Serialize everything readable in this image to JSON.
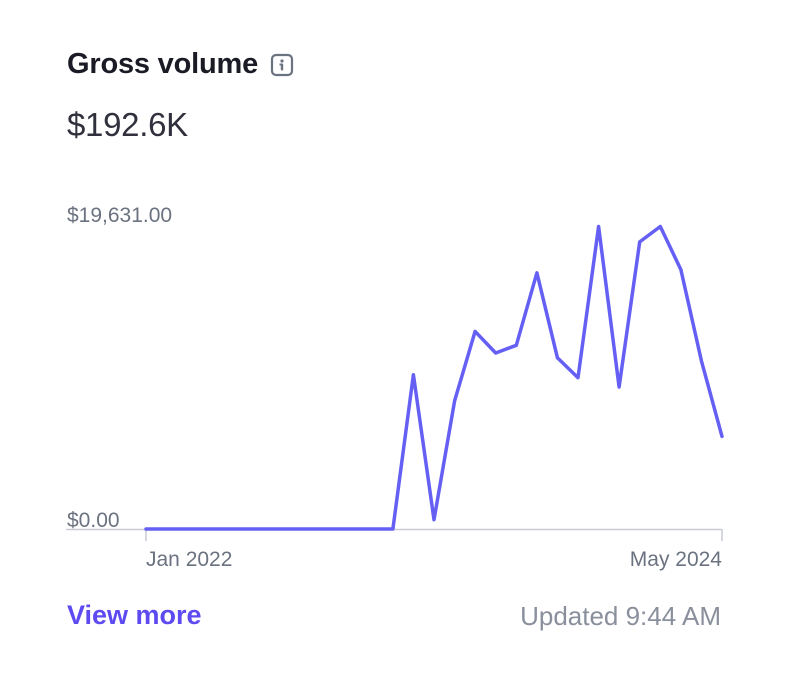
{
  "card": {
    "title": "Gross volume",
    "total": "$192.6K",
    "view_more": "View more",
    "updated": "Updated 9:44 AM"
  },
  "icons": {
    "info": "info-icon"
  },
  "colors": {
    "line": "#6560f3",
    "accent": "#5d4af1",
    "axis": "#c9cbd6",
    "muted": "#6b7280"
  },
  "chart_data": {
    "type": "line",
    "title": "Gross volume",
    "ylim": [
      0,
      19631
    ],
    "y_tick_labels": [
      "$19,631.00",
      "$0.00"
    ],
    "x_tick_labels": [
      "Jan 2022",
      "May 2024"
    ],
    "x": [
      "Jan 2022",
      "Feb 2022",
      "Mar 2022",
      "Apr 2022",
      "May 2022",
      "Jun 2022",
      "Jul 2022",
      "Aug 2022",
      "Sep 2022",
      "Oct 2022",
      "Nov 2022",
      "Dec 2022",
      "Jan 2023",
      "Feb 2023",
      "Mar 2023",
      "Apr 2023",
      "May 2023",
      "Jun 2023",
      "Jul 2023",
      "Aug 2023",
      "Sep 2023",
      "Oct 2023",
      "Nov 2023",
      "Dec 2023",
      "Jan 2024",
      "Feb 2024",
      "Mar 2024",
      "Apr 2024",
      "May 2024"
    ],
    "series": [
      {
        "values": [
          0,
          0,
          0,
          0,
          0,
          0,
          0,
          0,
          0,
          0,
          0,
          0,
          0,
          10000,
          600,
          8300,
          12800,
          11400,
          11900,
          16600,
          11100,
          9800,
          19600,
          9200,
          18600,
          19600,
          16800,
          10900,
          6000
        ]
      }
    ]
  }
}
